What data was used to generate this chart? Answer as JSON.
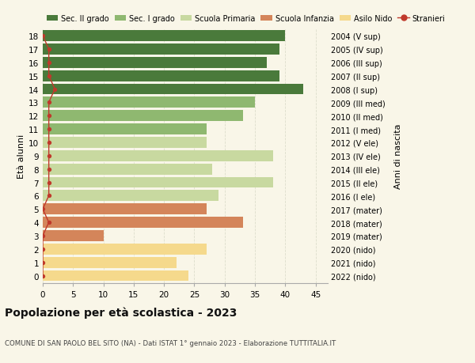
{
  "ages": [
    0,
    1,
    2,
    3,
    4,
    5,
    6,
    7,
    8,
    9,
    10,
    11,
    12,
    13,
    14,
    15,
    16,
    17,
    18
  ],
  "values": [
    24,
    22,
    27,
    10,
    33,
    27,
    29,
    38,
    28,
    38,
    27,
    27,
    33,
    35,
    43,
    39,
    37,
    39,
    40
  ],
  "stranieri": [
    0,
    0,
    0,
    0,
    1,
    0,
    1,
    1,
    1,
    1,
    1,
    1,
    1,
    1,
    2,
    1,
    1,
    1,
    0
  ],
  "right_labels": [
    "2022 (nido)",
    "2021 (nido)",
    "2020 (nido)",
    "2019 (mater)",
    "2018 (mater)",
    "2017 (mater)",
    "2016 (I ele)",
    "2015 (II ele)",
    "2014 (III ele)",
    "2013 (IV ele)",
    "2012 (V ele)",
    "2011 (I med)",
    "2010 (II med)",
    "2009 (III med)",
    "2008 (I sup)",
    "2007 (II sup)",
    "2006 (III sup)",
    "2005 (IV sup)",
    "2004 (V sup)"
  ],
  "bar_colors": [
    "#f5d98c",
    "#f5d98c",
    "#f5d98c",
    "#d4855a",
    "#d4855a",
    "#d4855a",
    "#c8d9a0",
    "#c8d9a0",
    "#c8d9a0",
    "#c8d9a0",
    "#c8d9a0",
    "#8fb870",
    "#8fb870",
    "#8fb870",
    "#4a7a3b",
    "#4a7a3b",
    "#4a7a3b",
    "#4a7a3b",
    "#4a7a3b"
  ],
  "legend_labels": [
    "Sec. II grado",
    "Sec. I grado",
    "Scuola Primaria",
    "Scuola Infanzia",
    "Asilo Nido",
    "Stranieri"
  ],
  "legend_colors": [
    "#4a7a3b",
    "#8fb870",
    "#c8d9a0",
    "#d4855a",
    "#f5d98c",
    "#c0392b"
  ],
  "title": "Popolazione per età scolastica - 2023",
  "subtitle": "COMUNE DI SAN PAOLO BEL SITO (NA) - Dati ISTAT 1° gennaio 2023 - Elaborazione TUTTITALIA.IT",
  "ylabel_left": "Età alunni",
  "ylabel_right": "Anni di nascita",
  "xlim": [
    0,
    47
  ],
  "bg_color": "#f9f6e8",
  "bar_height": 0.82,
  "stranieri_color": "#c0392b",
  "grid_color": "#ddddcc",
  "xticks": [
    0,
    5,
    10,
    15,
    20,
    25,
    30,
    35,
    40,
    45
  ]
}
